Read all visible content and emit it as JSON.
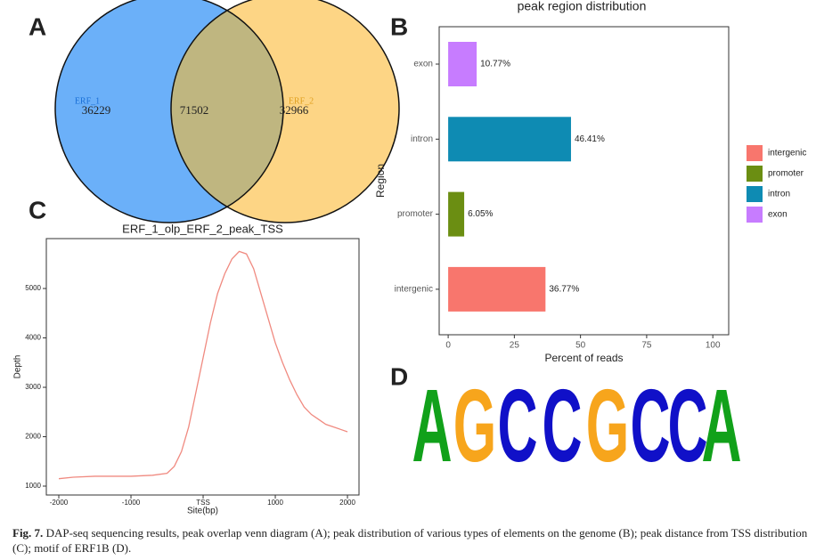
{
  "panels": [
    "A",
    "B",
    "C",
    "D"
  ],
  "chart_data": [
    {
      "type": "venn",
      "sets": [
        {
          "name": "ERF_1",
          "color": "#6bb0f9"
        },
        {
          "name": "ERF_2",
          "color": "#fdd585"
        }
      ],
      "overlap_color": "#bfb680",
      "values": [
        36229,
        71502,
        32966
      ]
    },
    {
      "type": "bar",
      "orientation": "horizontal",
      "title": "peak region distribution",
      "categories": [
        "exon",
        "intron",
        "promoter",
        "intergenic"
      ],
      "values": [
        10.77,
        46.41,
        6.05,
        36.77
      ],
      "value_labels": [
        "10.77%",
        "46.41%",
        "6.05%",
        "36.77%"
      ],
      "colors": [
        "#c77cff",
        "#0e8bb3",
        "#6b8e12",
        "#f8766d"
      ],
      "xlim": [
        -3.4,
        106
      ],
      "xticks": [
        0,
        25,
        50,
        75,
        100
      ],
      "xlabel": "Percent of reads",
      "ylabel": "Region",
      "legend": [
        "intergenic",
        "promoter",
        "intron",
        "exon"
      ],
      "legend_position": "right"
    },
    {
      "type": "line",
      "title": "ERF_1_olp_ERF_2_peak_TSS",
      "x": [
        -2000,
        -1800,
        -1500,
        -1000,
        -700,
        -500,
        -400,
        -300,
        -200,
        -100,
        0,
        100,
        200,
        300,
        400,
        500,
        600,
        700,
        800,
        900,
        1000,
        1100,
        1200,
        1300,
        1400,
        1500,
        1600,
        1700,
        1800,
        1900,
        2000
      ],
      "series": [
        {
          "color": "#f08a80",
          "values": [
            1150,
            1180,
            1200,
            1200,
            1220,
            1260,
            1400,
            1700,
            2200,
            2900,
            3600,
            4300,
            4900,
            5300,
            5600,
            5750,
            5700,
            5400,
            4900,
            4400,
            3900,
            3500,
            3150,
            2850,
            2600,
            2450,
            2350,
            2250,
            2200,
            2150,
            2100
          ]
        }
      ],
      "xlim": [
        -2173,
        2160
      ],
      "ylim": [
        820,
        6010
      ],
      "xticks": [
        -2000,
        -1000,
        {
          "value": 0,
          "label": "TSS"
        },
        1000,
        2000
      ],
      "yticks": [
        1000,
        2000,
        3000,
        4000,
        5000
      ],
      "xlabel": "Site(bp)",
      "ylabel": "Depth"
    }
  ],
  "logo": {
    "letters": [
      "A",
      "G",
      "C",
      "C",
      "G",
      "C",
      "C",
      "A"
    ]
  },
  "caption": {
    "label": "Fig. 7.",
    "text": "DAP-seq sequencing results, peak overlap venn diagram (A); peak distribution of various types of elements on the genome (B); peak distance from TSS distribution (C); motif of ERF1B (D)."
  }
}
